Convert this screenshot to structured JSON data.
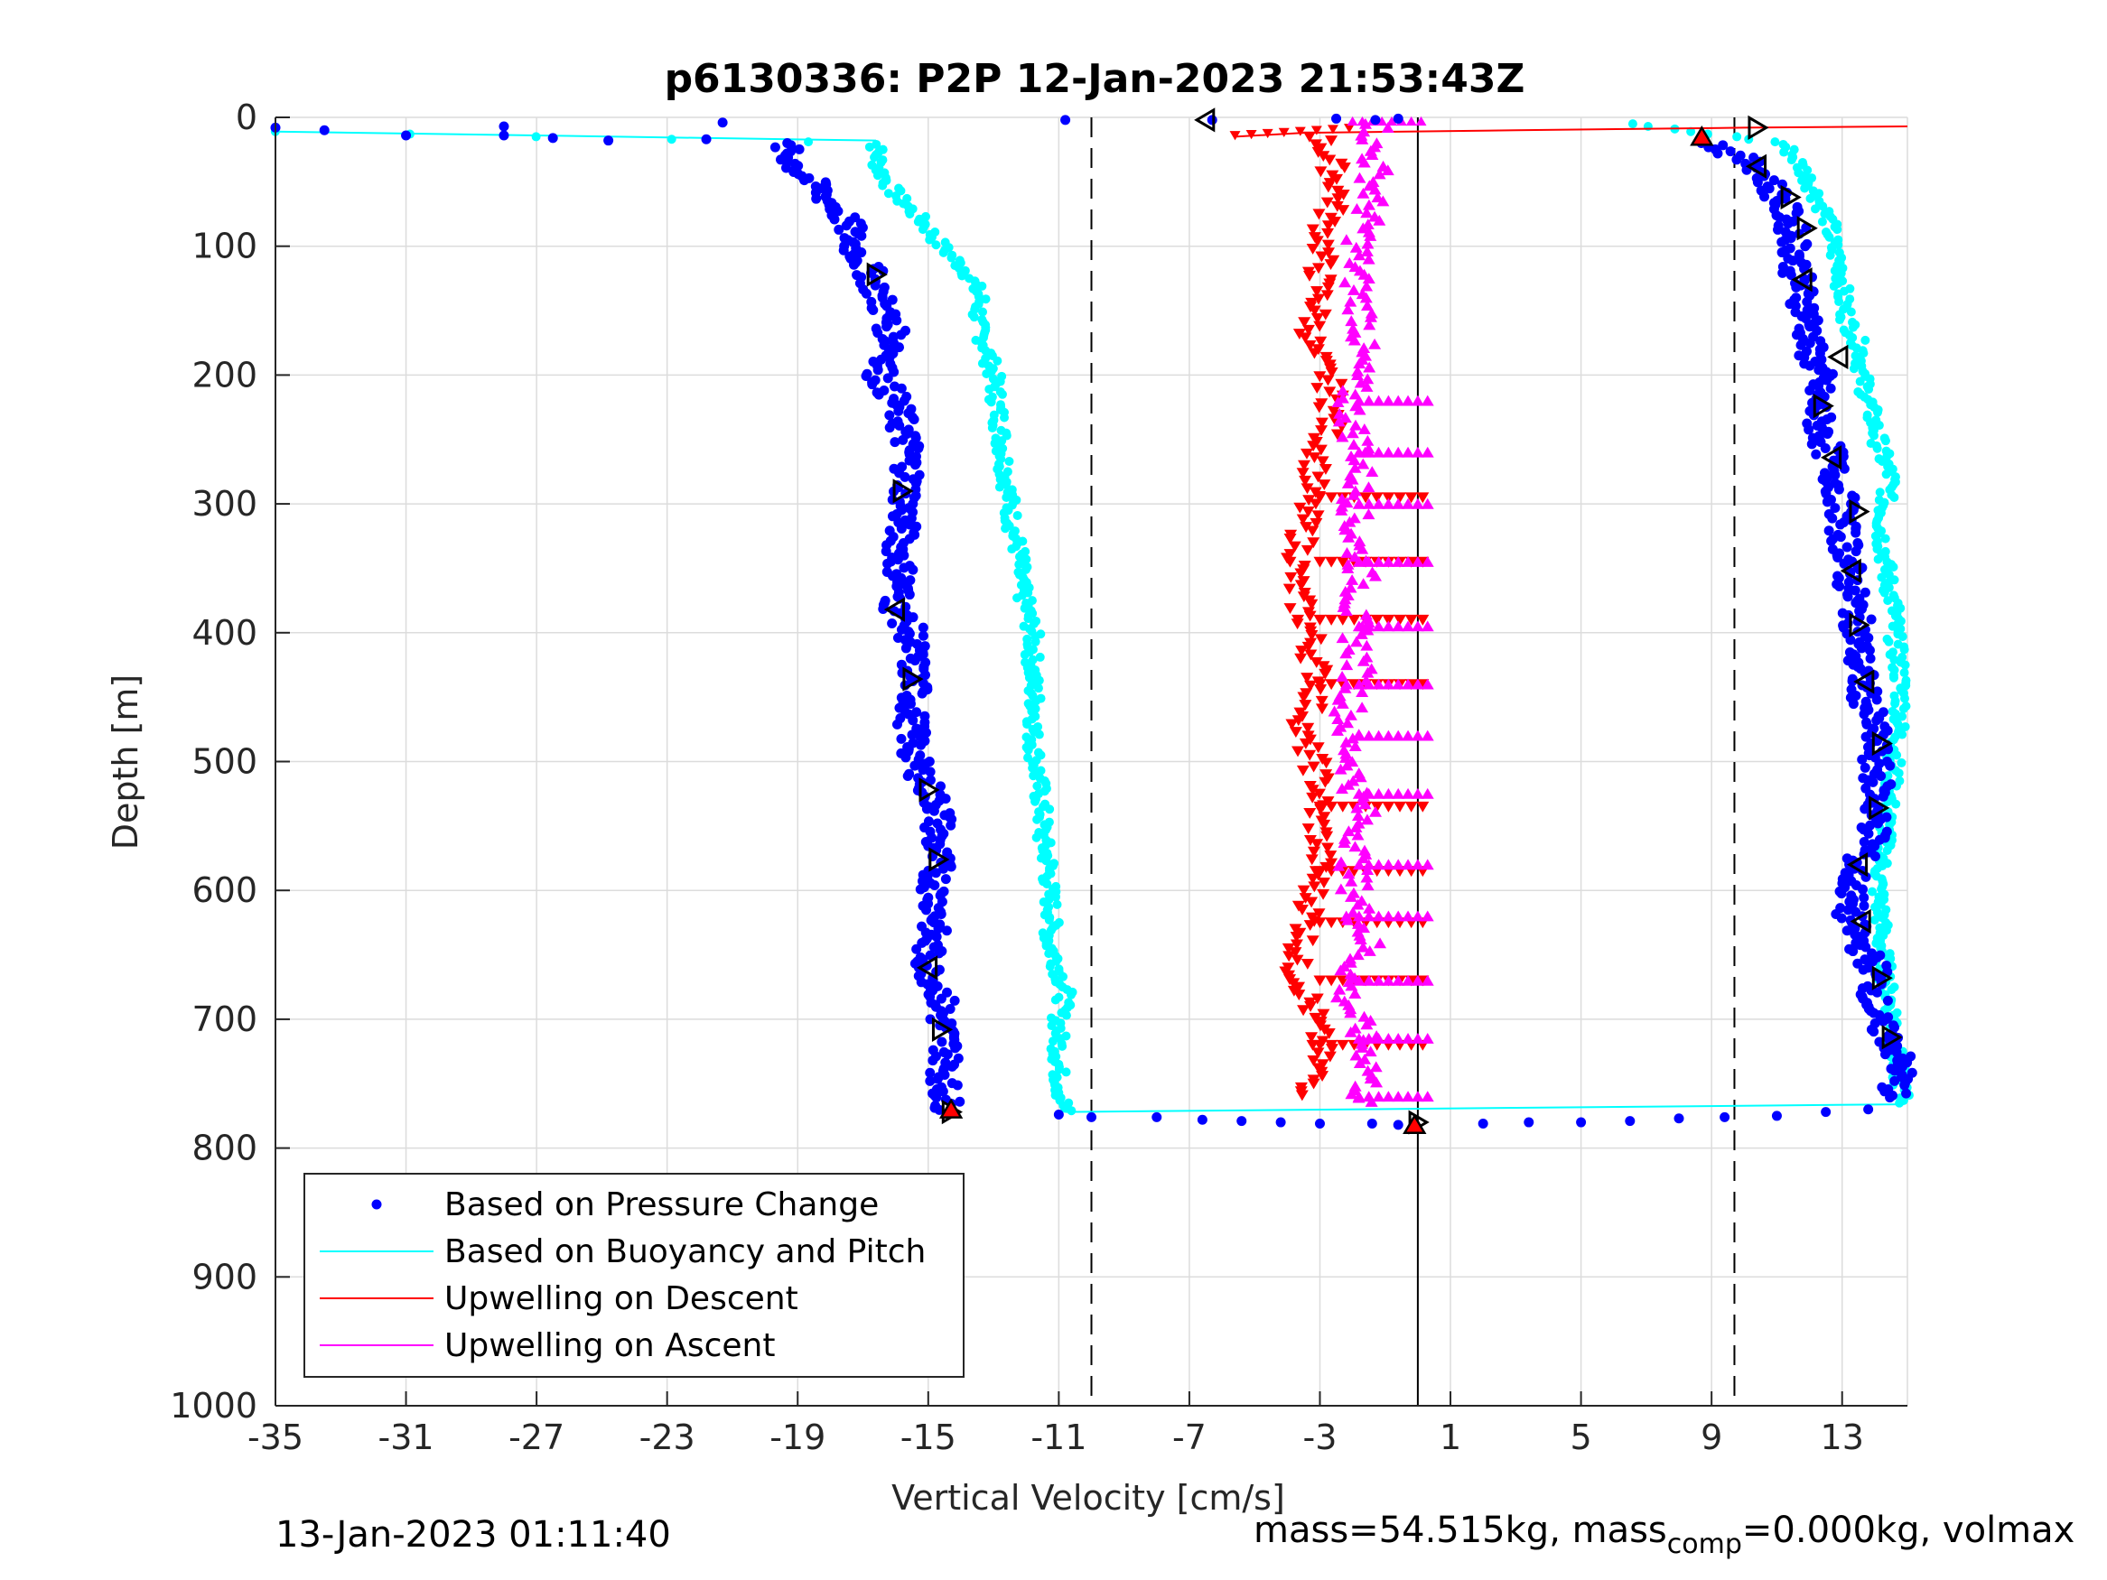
{
  "chart_data": {
    "type": "scatter",
    "title": "p6130336: P2P 12-Jan-2023 21:53:43Z",
    "xlabel": "Vertical Velocity [cm/s]",
    "ylabel": "Depth [m]",
    "xlim": [
      -35,
      15
    ],
    "ylim": [
      0,
      1000
    ],
    "y_reversed": true,
    "grid": true,
    "xticks": [
      -35,
      -31,
      -27,
      -23,
      -19,
      -15,
      -11,
      -7,
      -3,
      1,
      5,
      9,
      13
    ],
    "yticks": [
      0,
      100,
      200,
      300,
      400,
      500,
      600,
      700,
      800,
      900,
      1000
    ],
    "vertical_lines": [
      {
        "x": -10,
        "style": "dashed"
      },
      {
        "x": 9.7,
        "style": "dashed"
      },
      {
        "x": 0,
        "style": "solid"
      }
    ],
    "legend": {
      "position": "bottom-left"
    },
    "series": [
      {
        "name": "Based on Pressure Change",
        "color": "#0000ff",
        "marker": "dot",
        "descent": {
          "depth": [
            20,
            40,
            60,
            80,
            100,
            120,
            140,
            160,
            180,
            200,
            220,
            240,
            260,
            280,
            300,
            320,
            340,
            360,
            380,
            400,
            420,
            440,
            460,
            480,
            500,
            520,
            540,
            560,
            580,
            600,
            620,
            640,
            660,
            680,
            700,
            720,
            740,
            760,
            772
          ],
          "velocity": [
            -19.5,
            -19.0,
            -18.2,
            -17.5,
            -17.3,
            -16.8,
            -16.5,
            -16.2,
            -16.0,
            -16.5,
            -16.0,
            -15.8,
            -15.6,
            -15.6,
            -15.7,
            -15.8,
            -15.9,
            -15.8,
            -16.0,
            -15.5,
            -15.5,
            -15.4,
            -15.5,
            -15.5,
            -15.4,
            -15.0,
            -14.6,
            -14.8,
            -14.7,
            -14.8,
            -14.7,
            -15.0,
            -15.0,
            -14.6,
            -14.6,
            -14.4,
            -14.5,
            -14.5,
            -14.3
          ]
        },
        "ascent": {
          "depth": [
            762,
            740,
            720,
            700,
            680,
            660,
            640,
            620,
            600,
            580,
            560,
            540,
            520,
            500,
            480,
            460,
            440,
            420,
            400,
            380,
            360,
            340,
            320,
            300,
            280,
            260,
            240,
            220,
            200,
            180,
            160,
            140,
            120,
            100,
            80,
            60,
            40,
            20
          ],
          "velocity": [
            14.5,
            14.8,
            14.6,
            14.0,
            14.0,
            14.0,
            13.5,
            13.2,
            13.3,
            13.4,
            14.0,
            14.0,
            14.1,
            14.0,
            14.0,
            13.8,
            13.6,
            13.5,
            13.5,
            13.4,
            13.2,
            13.2,
            13.0,
            13.0,
            12.8,
            12.6,
            12.3,
            12.2,
            12.3,
            12.0,
            12.0,
            11.8,
            11.6,
            11.6,
            11.4,
            11.0,
            10.5,
            9.0
          ]
        },
        "surface_points": [
          {
            "depth": 8,
            "velocity": -35
          },
          {
            "depth": 10,
            "velocity": -33.5
          },
          {
            "depth": 14,
            "velocity": -31
          },
          {
            "depth": 7,
            "velocity": -28
          },
          {
            "depth": 14,
            "velocity": -28
          },
          {
            "depth": 16,
            "velocity": -26.5
          },
          {
            "depth": 18,
            "velocity": -24.8
          },
          {
            "depth": 17,
            "velocity": -21.8
          },
          {
            "depth": 4,
            "velocity": -21.3
          },
          {
            "depth": 2,
            "velocity": -10.8
          },
          {
            "depth": 2,
            "velocity": -6.3
          },
          {
            "depth": 1,
            "velocity": -2.5
          },
          {
            "depth": 2,
            "velocity": -1.3
          },
          {
            "depth": 1,
            "velocity": -0.6
          }
        ],
        "bottom_points": [
          {
            "depth": 774,
            "velocity": -11.0
          },
          {
            "depth": 776,
            "velocity": -10.0
          },
          {
            "depth": 776,
            "velocity": -8.0
          },
          {
            "depth": 778,
            "velocity": -6.6
          },
          {
            "depth": 779,
            "velocity": -5.4
          },
          {
            "depth": 780,
            "velocity": -4.2
          },
          {
            "depth": 781,
            "velocity": -3.0
          },
          {
            "depth": 781,
            "velocity": -1.4
          },
          {
            "depth": 782,
            "velocity": -0.6
          },
          {
            "depth": 781,
            "velocity": 2.0
          },
          {
            "depth": 780,
            "velocity": 3.4
          },
          {
            "depth": 780,
            "velocity": 5.0
          },
          {
            "depth": 779,
            "velocity": 6.5
          },
          {
            "depth": 777,
            "velocity": 8.0
          },
          {
            "depth": 776,
            "velocity": 9.4
          },
          {
            "depth": 775,
            "velocity": 11.0
          },
          {
            "depth": 772,
            "velocity": 12.5
          },
          {
            "depth": 770,
            "velocity": 13.8
          }
        ]
      },
      {
        "name": "Based on Buoyancy and Pitch",
        "color": "#00ffff",
        "marker": "dot-line",
        "descent": {
          "depth": [
            11,
            20,
            40,
            60,
            80,
            100,
            120,
            140,
            160,
            180,
            200,
            220,
            240,
            260,
            280,
            300,
            320,
            340,
            360,
            380,
            400,
            420,
            440,
            460,
            480,
            500,
            520,
            540,
            560,
            580,
            600,
            620,
            640,
            660,
            680,
            700,
            720,
            740,
            760,
            772
          ],
          "velocity": [
            -35,
            -16.6,
            -16.5,
            -16.0,
            -15.2,
            -14.6,
            -13.8,
            -13.4,
            -13.5,
            -13.2,
            -13.0,
            -12.9,
            -12.8,
            -12.7,
            -12.6,
            -12.5,
            -12.4,
            -12.2,
            -12.2,
            -12.0,
            -11.8,
            -11.8,
            -11.8,
            -11.7,
            -11.8,
            -11.7,
            -11.6,
            -11.5,
            -11.5,
            -11.3,
            -11.3,
            -11.2,
            -11.3,
            -11.0,
            -10.8,
            -11.0,
            -11.0,
            -11.0,
            -10.9,
            -10.8
          ]
        },
        "ascent": {
          "depth": [
            766,
            740,
            720,
            700,
            680,
            660,
            640,
            620,
            600,
            580,
            560,
            540,
            520,
            500,
            480,
            460,
            440,
            420,
            400,
            380,
            360,
            340,
            320,
            300,
            280,
            260,
            240,
            220,
            200,
            180,
            160,
            140,
            120,
            100,
            80,
            60,
            40,
            20,
            5
          ],
          "velocity": [
            14.9,
            14.7,
            14.6,
            14.6,
            14.4,
            14.3,
            14.2,
            14.2,
            14.1,
            14.2,
            14.3,
            14.4,
            14.5,
            14.6,
            14.7,
            14.8,
            14.8,
            14.7,
            14.6,
            14.6,
            14.4,
            14.3,
            14.2,
            14.3,
            14.5,
            14.2,
            14.0,
            13.8,
            13.6,
            13.6,
            13.2,
            13.0,
            13.0,
            12.7,
            12.6,
            12.2,
            11.8,
            11.2,
            6.5
          ]
        },
        "bottom_transition": {
          "from": [
            -10.8,
            772
          ],
          "to": [
            14.9,
            766
          ]
        },
        "surface_transition": {
          "from": [
            -35,
            11
          ],
          "to": [
            -16.6,
            18
          ]
        }
      },
      {
        "name": "Upwelling on Descent",
        "color": "#ff0000",
        "marker": "triangle-down",
        "depth": [
          15,
          40,
          60,
          80,
          100,
          120,
          140,
          160,
          180,
          200,
          220,
          240,
          260,
          280,
          300,
          320,
          340,
          360,
          380,
          400,
          420,
          440,
          460,
          480,
          500,
          520,
          540,
          560,
          580,
          600,
          620,
          640,
          660,
          680,
          700,
          720,
          740,
          760
        ],
        "velocity": [
          -3.0,
          -2.6,
          -2.4,
          -2.8,
          -2.9,
          -3.0,
          -3.0,
          -3.2,
          -3.3,
          -2.8,
          -2.6,
          -2.7,
          -3.0,
          -3.2,
          -3.4,
          -3.5,
          -3.6,
          -3.8,
          -3.6,
          -3.3,
          -3.2,
          -3.0,
          -3.3,
          -3.6,
          -3.2,
          -3.0,
          -3.1,
          -3.0,
          -3.0,
          -3.2,
          -3.3,
          -3.5,
          -3.8,
          -3.4,
          -3.2,
          -3.0,
          -3.1,
          -3.3
        ],
        "surface_branch": {
          "depth": [
            15,
            12,
            10,
            8,
            7
          ],
          "velocity": [
            -5.6,
            -3.5,
            3.0,
            10.0,
            15.0
          ]
        }
      },
      {
        "name": "Upwelling on Ascent",
        "color": "#ff00ff",
        "marker": "triangle-up",
        "depth": [
          765,
          740,
          720,
          700,
          680,
          660,
          640,
          620,
          600,
          580,
          560,
          540,
          520,
          500,
          480,
          460,
          440,
          420,
          400,
          380,
          360,
          340,
          320,
          300,
          280,
          260,
          240,
          220,
          200,
          180,
          160,
          140,
          120,
          100,
          80,
          60,
          40,
          20,
          5
        ],
        "velocity": [
          -1.8,
          -1.4,
          -1.6,
          -1.9,
          -2.2,
          -2.0,
          -1.5,
          -1.8,
          -1.9,
          -2.0,
          -1.8,
          -1.7,
          -1.9,
          -2.0,
          -2.2,
          -2.1,
          -1.9,
          -1.8,
          -1.9,
          -2.0,
          -1.7,
          -1.8,
          -2.0,
          -1.9,
          -1.8,
          -1.7,
          -2.0,
          -2.1,
          -1.9,
          -1.8,
          -1.6,
          -1.8,
          -1.9,
          -1.8,
          -1.6,
          -1.4,
          -1.3,
          -1.5,
          -1.2
        ]
      }
    ],
    "markers": {
      "red_triangles": [
        {
          "x": 8.7,
          "y": 15
        },
        {
          "x": -14.3,
          "y": 770
        },
        {
          "x": -0.1,
          "y": 782
        }
      ],
      "black_triangles": [
        {
          "x": -16.6,
          "y": 122,
          "dir": "right"
        },
        {
          "x": -15.8,
          "y": 290,
          "dir": "right"
        },
        {
          "x": -16.0,
          "y": 382,
          "dir": "left"
        },
        {
          "x": -15.5,
          "y": 436,
          "dir": "right"
        },
        {
          "x": -15.0,
          "y": 522,
          "dir": "right"
        },
        {
          "x": -14.7,
          "y": 576,
          "dir": "right"
        },
        {
          "x": -15.0,
          "y": 660,
          "dir": "left"
        },
        {
          "x": -14.6,
          "y": 708,
          "dir": "right"
        },
        {
          "x": -14.3,
          "y": 772,
          "dir": "right"
        },
        {
          "x": -6.5,
          "y": 2,
          "dir": "left"
        },
        {
          "x": 10.4,
          "y": 8,
          "dir": "right"
        },
        {
          "x": 10.4,
          "y": 38,
          "dir": "left"
        },
        {
          "x": 11.4,
          "y": 62,
          "dir": "right"
        },
        {
          "x": 11.9,
          "y": 86,
          "dir": "right"
        },
        {
          "x": 11.8,
          "y": 126,
          "dir": "left"
        },
        {
          "x": 12.9,
          "y": 186,
          "dir": "left"
        },
        {
          "x": 12.4,
          "y": 224,
          "dir": "right"
        },
        {
          "x": 12.7,
          "y": 264,
          "dir": "left"
        },
        {
          "x": 13.5,
          "y": 306,
          "dir": "right"
        },
        {
          "x": 13.3,
          "y": 352,
          "dir": "left"
        },
        {
          "x": 13.5,
          "y": 394,
          "dir": "right"
        },
        {
          "x": 13.7,
          "y": 438,
          "dir": "left"
        },
        {
          "x": 14.2,
          "y": 486,
          "dir": "right"
        },
        {
          "x": 14.1,
          "y": 536,
          "dir": "right"
        },
        {
          "x": 13.5,
          "y": 580,
          "dir": "left"
        },
        {
          "x": 13.6,
          "y": 624,
          "dir": "left"
        },
        {
          "x": 14.2,
          "y": 668,
          "dir": "right"
        },
        {
          "x": 14.5,
          "y": 714,
          "dir": "right"
        },
        {
          "x": 0.0,
          "y": 780,
          "dir": "right"
        }
      ]
    }
  },
  "footer": {
    "timestamp": "13-Jan-2023 01:11:40",
    "mass_text": "mass=54.515kg, mass",
    "mass_sub": "comp",
    "mass_rest": "=0.000kg, volmax"
  }
}
